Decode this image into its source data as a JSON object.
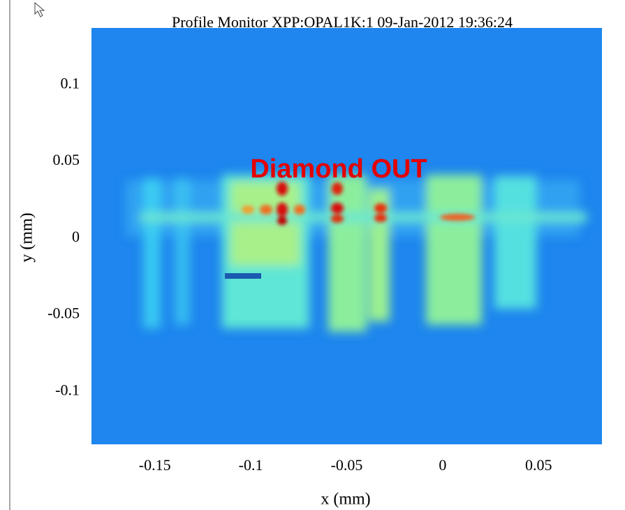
{
  "chart_data": {
    "type": "image",
    "title": "Profile Monitor XPP:OPAL1K:1 09-Jan-2012 19:36:24",
    "xlabel": "x (mm)",
    "ylabel": "y (mm)",
    "annotation": "Diamond OUT",
    "xlim": [
      -0.183,
      0.083
    ],
    "ylim": [
      -0.1345,
      0.137
    ],
    "xticks": [
      -0.15,
      -0.1,
      -0.05,
      0,
      0.05
    ],
    "yticks": [
      -0.1,
      -0.05,
      0,
      0.05,
      0.1
    ]
  }
}
